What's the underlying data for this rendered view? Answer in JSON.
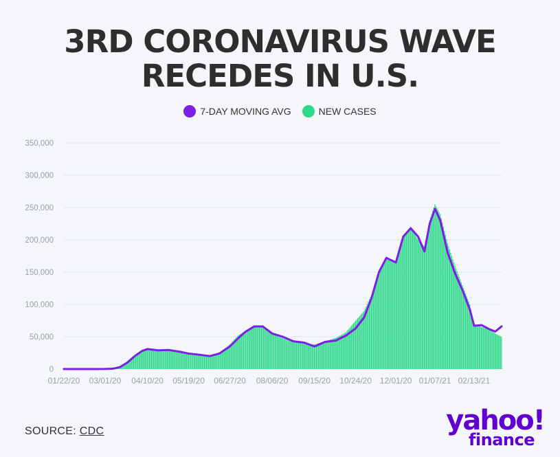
{
  "header": {
    "title_line1": "3RD CORONAVIRUS WAVE",
    "title_line2": "RECEDES IN U.S."
  },
  "legend": [
    {
      "label": "7-DAY MOVING AVG",
      "color": "#7b1fe4"
    },
    {
      "label": "NEW CASES",
      "color": "#2ed889"
    }
  ],
  "footer": {
    "source_prefix": "SOURCE:",
    "source_link": "CDC"
  },
  "logo": {
    "main": "yahoo!",
    "sub": "finance"
  },
  "chart_data": {
    "type": "bar",
    "title": "3RD CORONAVIRUS WAVE RECEDES IN U.S.",
    "xlabel": "",
    "ylabel": "",
    "ylim": [
      0,
      350000
    ],
    "y_ticks": [
      "0",
      "50,000",
      "100,000",
      "150,000",
      "200,000",
      "250,000",
      "300,000",
      "350,000"
    ],
    "x_ticks": [
      "01/22/20",
      "03/01/20",
      "04/10/20",
      "05/19/20",
      "06/27/20",
      "08/06/20",
      "09/15/20",
      "10/24/20",
      "12/01/20",
      "01/07/21",
      "02/13/21"
    ],
    "x_start": "01/22/20",
    "x_end": "03/11/21",
    "grid": true,
    "legend_position": "top-center",
    "series": [
      {
        "name": "NEW CASES",
        "kind": "bar",
        "color": "#2ed889",
        "dates": [
          "01/22/20",
          "02/05/20",
          "02/19/20",
          "03/01/20",
          "03/08/20",
          "03/15/20",
          "03/22/20",
          "03/29/20",
          "04/05/20",
          "04/10/20",
          "04/20/20",
          "04/30/20",
          "05/10/20",
          "05/19/20",
          "05/30/20",
          "06/08/20",
          "06/17/20",
          "06/27/20",
          "07/05/20",
          "07/12/20",
          "07/20/20",
          "07/28/20",
          "08/06/20",
          "08/16/20",
          "08/26/20",
          "09/05/20",
          "09/15/20",
          "09/25/20",
          "10/05/20",
          "10/15/20",
          "10/24/20",
          "11/01/20",
          "11/08/20",
          "11/15/20",
          "11/22/20",
          "12/01/20",
          "12/08/20",
          "12/15/20",
          "12/22/20",
          "12/28/20",
          "01/02/21",
          "01/07/21",
          "01/12/21",
          "01/19/21",
          "01/26/21",
          "02/02/21",
          "02/09/21",
          "02/13/21",
          "02/20/21",
          "02/27/21",
          "03/05/21",
          "03/11/21"
        ],
        "values": [
          0,
          0,
          0,
          100,
          600,
          4000,
          12000,
          22000,
          30000,
          31000,
          28000,
          30000,
          26000,
          23000,
          21000,
          19000,
          25000,
          38000,
          52000,
          60000,
          67000,
          64000,
          54000,
          48000,
          42000,
          40000,
          38000,
          43000,
          48000,
          57000,
          75000,
          90000,
          115000,
          150000,
          170000,
          165000,
          205000,
          220000,
          200000,
          190000,
          230000,
          255000,
          240000,
          195000,
          160000,
          130000,
          100000,
          70000,
          65000,
          62000,
          55000,
          50000
        ]
      },
      {
        "name": "7-DAY MOVING AVG",
        "kind": "line",
        "color": "#7b1fe4",
        "dates": [
          "01/22/20",
          "02/05/20",
          "02/19/20",
          "03/01/20",
          "03/08/20",
          "03/15/20",
          "03/22/20",
          "03/29/20",
          "04/05/20",
          "04/10/20",
          "04/20/20",
          "04/30/20",
          "05/10/20",
          "05/19/20",
          "05/30/20",
          "06/08/20",
          "06/17/20",
          "06/27/20",
          "07/05/20",
          "07/12/20",
          "07/20/20",
          "07/28/20",
          "08/06/20",
          "08/16/20",
          "08/26/20",
          "09/05/20",
          "09/15/20",
          "09/25/20",
          "10/05/20",
          "10/15/20",
          "10/24/20",
          "11/01/20",
          "11/08/20",
          "11/15/20",
          "11/22/20",
          "12/01/20",
          "12/08/20",
          "12/15/20",
          "12/22/20",
          "12/28/20",
          "01/02/21",
          "01/07/21",
          "01/12/21",
          "01/19/21",
          "01/26/21",
          "02/02/21",
          "02/09/21",
          "02/13/21",
          "02/20/21",
          "02/27/21",
          "03/05/21",
          "03/11/21"
        ],
        "values": [
          0,
          0,
          0,
          100,
          500,
          3000,
          10000,
          20000,
          28000,
          31000,
          29000,
          29500,
          27000,
          24000,
          22000,
          20000,
          24000,
          35000,
          48000,
          58000,
          66000,
          66000,
          55000,
          50000,
          43000,
          41000,
          35000,
          42000,
          44000,
          52000,
          63000,
          80000,
          110000,
          150000,
          172000,
          165000,
          205000,
          218000,
          205000,
          182000,
          225000,
          248000,
          230000,
          180000,
          148000,
          122000,
          92000,
          67000,
          68000,
          62000,
          58000,
          66000
        ]
      }
    ]
  }
}
